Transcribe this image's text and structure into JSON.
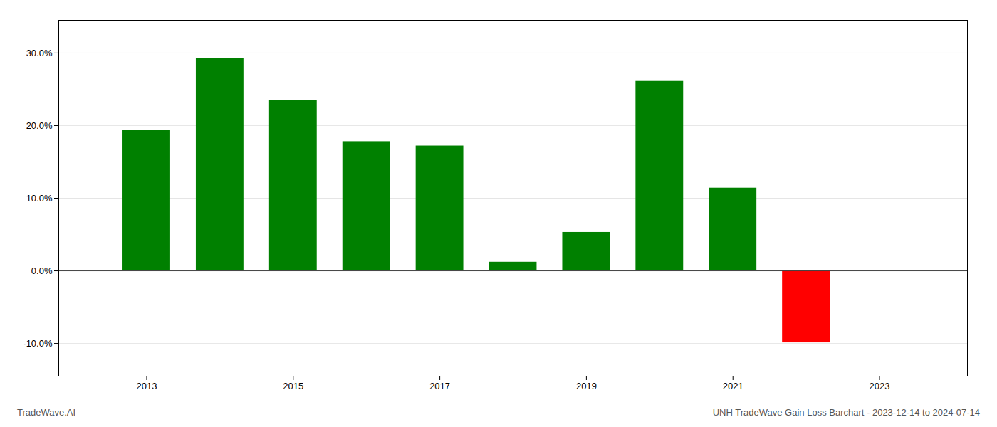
{
  "chart_data": {
    "type": "bar",
    "x": [
      2013,
      2014,
      2015,
      2016,
      2017,
      2018,
      2019,
      2020,
      2021,
      2022
    ],
    "values": [
      0.194,
      0.293,
      0.235,
      0.178,
      0.172,
      0.012,
      0.053,
      0.261,
      0.114,
      -0.099
    ],
    "colors": [
      "#008000",
      "#008000",
      "#008000",
      "#008000",
      "#008000",
      "#008000",
      "#008000",
      "#008000",
      "#008000",
      "#ff0000"
    ],
    "xlim": [
      2011.8,
      2024.2
    ],
    "xticks": [
      2013,
      2015,
      2017,
      2019,
      2021,
      2023
    ],
    "ylim": [
      -0.145,
      0.345
    ],
    "yticks": [
      {
        "value": -0.1,
        "label": "-10.0%"
      },
      {
        "value": 0.0,
        "label": "0.0%"
      },
      {
        "value": 0.1,
        "label": "10.0%"
      },
      {
        "value": 0.2,
        "label": "20.0%"
      },
      {
        "value": 0.3,
        "label": "30.0%"
      }
    ],
    "grid": true,
    "annotations": [
      "TradeWave.AI",
      "UNH TradeWave Gain Loss Barchart - 2023-12-14 to 2024-07-14"
    ]
  }
}
